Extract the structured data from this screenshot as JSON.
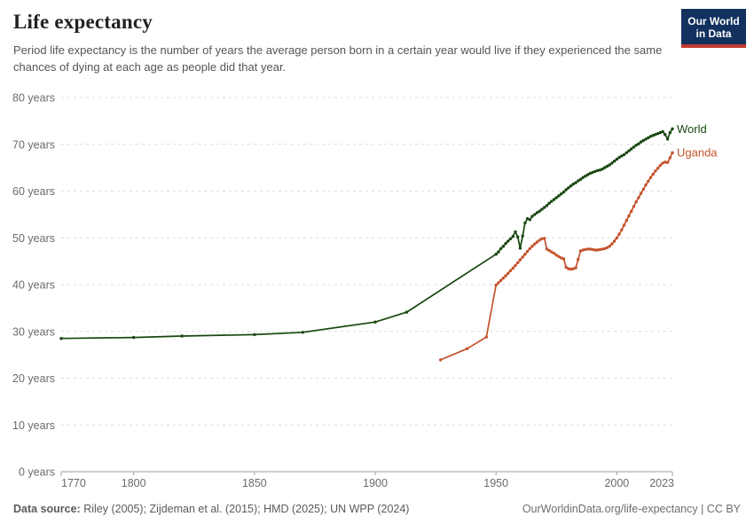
{
  "header": {
    "title": "Life expectancy",
    "subtitle": "Period life expectancy is the number of years the average person born in a certain year would live if they experienced the same chances of dying at each age as people did that year.",
    "logo": {
      "line1": "Our World",
      "line2": "in Data",
      "bg_color": "#12315E",
      "bar_color": "#C53A32"
    }
  },
  "chart_data": {
    "type": "line",
    "title": "Life expectancy",
    "unit": "years",
    "xlabel": "",
    "ylabel": "",
    "xlim": [
      1770,
      2023
    ],
    "ylim": [
      0,
      80
    ],
    "x_ticks": [
      1770,
      1800,
      1850,
      1900,
      1950,
      2000,
      2023
    ],
    "y_ticks": [
      0,
      10,
      20,
      30,
      40,
      50,
      60,
      70,
      80
    ],
    "y_tick_suffix": " years",
    "grid": "horizontal-dashed",
    "legend_position": "line-end-labels",
    "series": [
      {
        "name": "World",
        "color": "#18470F",
        "points": [
          [
            1770,
            28.5
          ],
          [
            1800,
            28.7
          ],
          [
            1820,
            29.0
          ],
          [
            1850,
            29.3
          ],
          [
            1870,
            29.8
          ],
          [
            1900,
            32.0
          ],
          [
            1913,
            34.1
          ],
          [
            1950,
            46.5
          ],
          [
            1951,
            47.0
          ],
          [
            1952,
            47.7
          ],
          [
            1953,
            48.2
          ],
          [
            1954,
            48.8
          ],
          [
            1955,
            49.3
          ],
          [
            1956,
            49.8
          ],
          [
            1957,
            50.3
          ],
          [
            1958,
            51.3
          ],
          [
            1959,
            50.2
          ],
          [
            1960,
            47.8
          ],
          [
            1961,
            50.4
          ],
          [
            1962,
            53.2
          ],
          [
            1963,
            54.1
          ],
          [
            1964,
            53.9
          ],
          [
            1965,
            54.6
          ],
          [
            1966,
            55.0
          ],
          [
            1967,
            55.4
          ],
          [
            1968,
            55.7
          ],
          [
            1969,
            56.1
          ],
          [
            1970,
            56.5
          ],
          [
            1971,
            56.9
          ],
          [
            1972,
            57.4
          ],
          [
            1973,
            57.8
          ],
          [
            1974,
            58.2
          ],
          [
            1975,
            58.6
          ],
          [
            1976,
            59.0
          ],
          [
            1977,
            59.4
          ],
          [
            1978,
            59.8
          ],
          [
            1979,
            60.3
          ],
          [
            1980,
            60.7
          ],
          [
            1981,
            61.1
          ],
          [
            1982,
            61.5
          ],
          [
            1983,
            61.8
          ],
          [
            1984,
            62.2
          ],
          [
            1985,
            62.5
          ],
          [
            1986,
            62.9
          ],
          [
            1987,
            63.2
          ],
          [
            1988,
            63.5
          ],
          [
            1989,
            63.8
          ],
          [
            1990,
            64.0
          ],
          [
            1991,
            64.2
          ],
          [
            1992,
            64.4
          ],
          [
            1993,
            64.5
          ],
          [
            1994,
            64.7
          ],
          [
            1995,
            65.0
          ],
          [
            1996,
            65.3
          ],
          [
            1997,
            65.6
          ],
          [
            1998,
            66.0
          ],
          [
            1999,
            66.4
          ],
          [
            2000,
            66.8
          ],
          [
            2001,
            67.2
          ],
          [
            2002,
            67.5
          ],
          [
            2003,
            67.8
          ],
          [
            2004,
            68.2
          ],
          [
            2005,
            68.6
          ],
          [
            2006,
            69.0
          ],
          [
            2007,
            69.4
          ],
          [
            2008,
            69.8
          ],
          [
            2009,
            70.1
          ],
          [
            2010,
            70.5
          ],
          [
            2011,
            70.8
          ],
          [
            2012,
            71.1
          ],
          [
            2013,
            71.4
          ],
          [
            2014,
            71.7
          ],
          [
            2015,
            71.9
          ],
          [
            2016,
            72.1
          ],
          [
            2017,
            72.3
          ],
          [
            2018,
            72.5
          ],
          [
            2019,
            72.7
          ],
          [
            2020,
            72.1
          ],
          [
            2021,
            71.1
          ],
          [
            2022,
            72.5
          ],
          [
            2023,
            73.3
          ]
        ]
      },
      {
        "name": "Uganda",
        "color": "#C4522B",
        "points": [
          [
            1927,
            23.9
          ],
          [
            1938,
            26.3
          ],
          [
            1946,
            28.8
          ],
          [
            1950,
            39.9
          ],
          [
            1951,
            40.4
          ],
          [
            1952,
            40.9
          ],
          [
            1953,
            41.4
          ],
          [
            1954,
            41.9
          ],
          [
            1955,
            42.4
          ],
          [
            1956,
            43.0
          ],
          [
            1957,
            43.5
          ],
          [
            1958,
            44.1
          ],
          [
            1959,
            44.7
          ],
          [
            1960,
            45.3
          ],
          [
            1961,
            45.9
          ],
          [
            1962,
            46.5
          ],
          [
            1963,
            47.1
          ],
          [
            1964,
            47.7
          ],
          [
            1965,
            48.2
          ],
          [
            1966,
            48.7
          ],
          [
            1967,
            49.1
          ],
          [
            1968,
            49.5
          ],
          [
            1969,
            49.8
          ],
          [
            1970,
            49.9
          ],
          [
            1971,
            47.6
          ],
          [
            1972,
            47.3
          ],
          [
            1973,
            47.0
          ],
          [
            1974,
            46.7
          ],
          [
            1975,
            46.3
          ],
          [
            1976,
            46.0
          ],
          [
            1977,
            45.7
          ],
          [
            1978,
            45.5
          ],
          [
            1979,
            43.7
          ],
          [
            1980,
            43.4
          ],
          [
            1981,
            43.3
          ],
          [
            1982,
            43.4
          ],
          [
            1983,
            43.6
          ],
          [
            1984,
            45.4
          ],
          [
            1985,
            47.2
          ],
          [
            1986,
            47.4
          ],
          [
            1987,
            47.5
          ],
          [
            1988,
            47.6
          ],
          [
            1989,
            47.6
          ],
          [
            1990,
            47.5
          ],
          [
            1991,
            47.4
          ],
          [
            1992,
            47.4
          ],
          [
            1993,
            47.5
          ],
          [
            1994,
            47.6
          ],
          [
            1995,
            47.7
          ],
          [
            1996,
            47.9
          ],
          [
            1997,
            48.2
          ],
          [
            1998,
            48.7
          ],
          [
            1999,
            49.3
          ],
          [
            2000,
            50.0
          ],
          [
            2001,
            50.8
          ],
          [
            2002,
            51.7
          ],
          [
            2003,
            52.7
          ],
          [
            2004,
            53.7
          ],
          [
            2005,
            54.7
          ],
          [
            2006,
            55.7
          ],
          [
            2007,
            56.7
          ],
          [
            2008,
            57.7
          ],
          [
            2009,
            58.6
          ],
          [
            2010,
            59.5
          ],
          [
            2011,
            60.4
          ],
          [
            2012,
            61.3
          ],
          [
            2013,
            62.1
          ],
          [
            2014,
            62.9
          ],
          [
            2015,
            63.6
          ],
          [
            2016,
            64.3
          ],
          [
            2017,
            64.9
          ],
          [
            2018,
            65.5
          ],
          [
            2019,
            66.0
          ],
          [
            2020,
            66.2
          ],
          [
            2021,
            66.1
          ],
          [
            2022,
            67.1
          ],
          [
            2023,
            68.2
          ]
        ]
      }
    ]
  },
  "footer": {
    "source_label": "Data source:",
    "source_text": " Riley (2005); Zijdeman et al. (2015); HMD (2025); UN WPP (2024)",
    "link": "OurWorldinData.org/life-expectancy | CC BY"
  }
}
